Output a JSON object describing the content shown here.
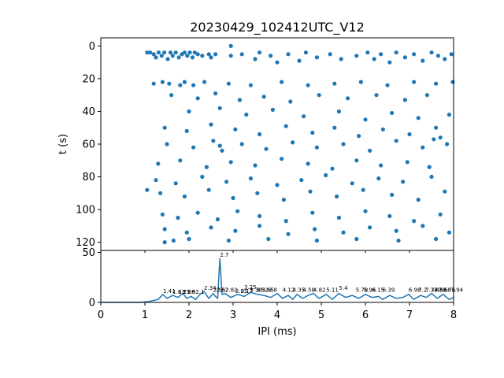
{
  "chart_data": [
    {
      "type": "scatter",
      "title": "20230429_102412UTC_V12",
      "xlabel": "",
      "ylabel": "t (s)",
      "xlim": [
        0,
        8
      ],
      "ylim": [
        125,
        -5
      ],
      "y_inverted": true,
      "x_shared_with_next": true,
      "yticks": [
        0,
        20,
        40,
        60,
        80,
        100,
        120
      ],
      "color": "#1f77b4",
      "marker": "dot",
      "grid": false,
      "points": [
        {
          "x": 1.05,
          "y": 4
        },
        {
          "x": 1.12,
          "y": 4
        },
        {
          "x": 1.2,
          "y": 5
        },
        {
          "x": 1.25,
          "y": 7
        },
        {
          "x": 1.31,
          "y": 4
        },
        {
          "x": 1.38,
          "y": 6
        },
        {
          "x": 1.44,
          "y": 4
        },
        {
          "x": 1.52,
          "y": 8
        },
        {
          "x": 1.58,
          "y": 4
        },
        {
          "x": 1.63,
          "y": 6
        },
        {
          "x": 1.7,
          "y": 4
        },
        {
          "x": 1.77,
          "y": 7
        },
        {
          "x": 1.84,
          "y": 5
        },
        {
          "x": 1.9,
          "y": 4
        },
        {
          "x": 1.96,
          "y": 6
        },
        {
          "x": 2.02,
          "y": 4
        },
        {
          "x": 2.08,
          "y": 7
        },
        {
          "x": 2.13,
          "y": 4
        },
        {
          "x": 2.2,
          "y": 5
        },
        {
          "x": 2.3,
          "y": 6
        },
        {
          "x": 2.45,
          "y": 5
        },
        {
          "x": 2.5,
          "y": 7
        },
        {
          "x": 2.6,
          "y": 5
        },
        {
          "x": 2.95,
          "y": 6
        },
        {
          "x": 3.2,
          "y": 5
        },
        {
          "x": 3.5,
          "y": 8
        },
        {
          "x": 3.6,
          "y": 4
        },
        {
          "x": 3.85,
          "y": 6
        },
        {
          "x": 4.0,
          "y": 10
        },
        {
          "x": 4.25,
          "y": 5
        },
        {
          "x": 4.5,
          "y": 9
        },
        {
          "x": 4.65,
          "y": 4
        },
        {
          "x": 4.9,
          "y": 7
        },
        {
          "x": 5.2,
          "y": 5
        },
        {
          "x": 5.45,
          "y": 8
        },
        {
          "x": 5.8,
          "y": 6
        },
        {
          "x": 6.05,
          "y": 4
        },
        {
          "x": 6.2,
          "y": 8
        },
        {
          "x": 6.35,
          "y": 5
        },
        {
          "x": 6.55,
          "y": 10
        },
        {
          "x": 6.7,
          "y": 4
        },
        {
          "x": 6.9,
          "y": 7
        },
        {
          "x": 7.1,
          "y": 5
        },
        {
          "x": 7.3,
          "y": 9
        },
        {
          "x": 7.5,
          "y": 4
        },
        {
          "x": 7.65,
          "y": 6
        },
        {
          "x": 7.8,
          "y": 8
        },
        {
          "x": 7.95,
          "y": 5
        },
        {
          "x": 2.95,
          "y": 0
        },
        {
          "x": 1.2,
          "y": 23
        },
        {
          "x": 1.4,
          "y": 22
        },
        {
          "x": 1.55,
          "y": 23
        },
        {
          "x": 1.8,
          "y": 24
        },
        {
          "x": 1.9,
          "y": 22
        },
        {
          "x": 2.1,
          "y": 24
        },
        {
          "x": 2.35,
          "y": 22
        },
        {
          "x": 2.9,
          "y": 23
        },
        {
          "x": 3.4,
          "y": 24
        },
        {
          "x": 4.1,
          "y": 22
        },
        {
          "x": 4.7,
          "y": 24
        },
        {
          "x": 5.3,
          "y": 23
        },
        {
          "x": 5.9,
          "y": 22
        },
        {
          "x": 6.5,
          "y": 24
        },
        {
          "x": 7.1,
          "y": 22
        },
        {
          "x": 7.6,
          "y": 23
        },
        {
          "x": 7.98,
          "y": 22
        },
        {
          "x": 1.6,
          "y": 30
        },
        {
          "x": 2.2,
          "y": 32
        },
        {
          "x": 2.6,
          "y": 29
        },
        {
          "x": 3.15,
          "y": 33
        },
        {
          "x": 3.7,
          "y": 31
        },
        {
          "x": 4.3,
          "y": 34
        },
        {
          "x": 4.95,
          "y": 30
        },
        {
          "x": 5.6,
          "y": 32
        },
        {
          "x": 6.25,
          "y": 30
        },
        {
          "x": 6.9,
          "y": 33
        },
        {
          "x": 7.4,
          "y": 30
        },
        {
          "x": 2.0,
          "y": 40
        },
        {
          "x": 2.7,
          "y": 38
        },
        {
          "x": 3.3,
          "y": 42
        },
        {
          "x": 3.9,
          "y": 39
        },
        {
          "x": 4.6,
          "y": 43
        },
        {
          "x": 5.4,
          "y": 40
        },
        {
          "x": 6.0,
          "y": 45
        },
        {
          "x": 6.6,
          "y": 41
        },
        {
          "x": 7.2,
          "y": 44
        },
        {
          "x": 7.9,
          "y": 42
        },
        {
          "x": 1.45,
          "y": 50
        },
        {
          "x": 1.95,
          "y": 52
        },
        {
          "x": 2.5,
          "y": 48
        },
        {
          "x": 3.05,
          "y": 51
        },
        {
          "x": 3.6,
          "y": 54
        },
        {
          "x": 4.2,
          "y": 49
        },
        {
          "x": 4.8,
          "y": 53
        },
        {
          "x": 5.3,
          "y": 50
        },
        {
          "x": 5.85,
          "y": 55
        },
        {
          "x": 6.4,
          "y": 51
        },
        {
          "x": 7.0,
          "y": 54
        },
        {
          "x": 7.6,
          "y": 50
        },
        {
          "x": 1.5,
          "y": 60
        },
        {
          "x": 2.1,
          "y": 62
        },
        {
          "x": 2.55,
          "y": 58
        },
        {
          "x": 2.7,
          "y": 61
        },
        {
          "x": 2.75,
          "y": 64
        },
        {
          "x": 3.2,
          "y": 60
        },
        {
          "x": 3.75,
          "y": 63
        },
        {
          "x": 4.35,
          "y": 59
        },
        {
          "x": 4.9,
          "y": 62
        },
        {
          "x": 5.5,
          "y": 60
        },
        {
          "x": 6.1,
          "y": 64
        },
        {
          "x": 6.7,
          "y": 58
        },
        {
          "x": 7.3,
          "y": 62
        },
        {
          "x": 7.55,
          "y": 57
        },
        {
          "x": 7.7,
          "y": 56
        },
        {
          "x": 7.85,
          "y": 60
        },
        {
          "x": 1.3,
          "y": 72
        },
        {
          "x": 1.8,
          "y": 70
        },
        {
          "x": 2.4,
          "y": 74
        },
        {
          "x": 2.95,
          "y": 71
        },
        {
          "x": 3.5,
          "y": 73
        },
        {
          "x": 4.1,
          "y": 69
        },
        {
          "x": 4.7,
          "y": 72
        },
        {
          "x": 5.25,
          "y": 75
        },
        {
          "x": 5.8,
          "y": 70
        },
        {
          "x": 6.35,
          "y": 73
        },
        {
          "x": 6.95,
          "y": 71
        },
        {
          "x": 7.45,
          "y": 74
        },
        {
          "x": 1.25,
          "y": 82
        },
        {
          "x": 1.7,
          "y": 84
        },
        {
          "x": 2.3,
          "y": 80
        },
        {
          "x": 2.85,
          "y": 83
        },
        {
          "x": 3.4,
          "y": 81
        },
        {
          "x": 4.0,
          "y": 85
        },
        {
          "x": 4.55,
          "y": 82
        },
        {
          "x": 5.1,
          "y": 79
        },
        {
          "x": 5.7,
          "y": 84
        },
        {
          "x": 6.3,
          "y": 81
        },
        {
          "x": 6.85,
          "y": 83
        },
        {
          "x": 7.5,
          "y": 80
        },
        {
          "x": 1.05,
          "y": 88
        },
        {
          "x": 1.35,
          "y": 90
        },
        {
          "x": 1.9,
          "y": 92
        },
        {
          "x": 2.45,
          "y": 88
        },
        {
          "x": 3.0,
          "y": 93
        },
        {
          "x": 3.55,
          "y": 90
        },
        {
          "x": 4.15,
          "y": 94
        },
        {
          "x": 4.75,
          "y": 89
        },
        {
          "x": 5.35,
          "y": 92
        },
        {
          "x": 5.95,
          "y": 88
        },
        {
          "x": 6.6,
          "y": 91
        },
        {
          "x": 7.2,
          "y": 94
        },
        {
          "x": 7.8,
          "y": 89
        },
        {
          "x": 1.4,
          "y": 103
        },
        {
          "x": 1.75,
          "y": 105
        },
        {
          "x": 2.2,
          "y": 102
        },
        {
          "x": 2.65,
          "y": 106
        },
        {
          "x": 3.1,
          "y": 101
        },
        {
          "x": 3.6,
          "y": 104
        },
        {
          "x": 4.2,
          "y": 107
        },
        {
          "x": 4.8,
          "y": 102
        },
        {
          "x": 5.4,
          "y": 105
        },
        {
          "x": 6.0,
          "y": 101
        },
        {
          "x": 6.55,
          "y": 104
        },
        {
          "x": 7.1,
          "y": 107
        },
        {
          "x": 7.7,
          "y": 103
        },
        {
          "x": 1.45,
          "y": 112
        },
        {
          "x": 1.95,
          "y": 114
        },
        {
          "x": 2.5,
          "y": 111
        },
        {
          "x": 3.05,
          "y": 113
        },
        {
          "x": 3.6,
          "y": 110
        },
        {
          "x": 4.25,
          "y": 115
        },
        {
          "x": 4.85,
          "y": 112
        },
        {
          "x": 5.5,
          "y": 114
        },
        {
          "x": 6.1,
          "y": 111
        },
        {
          "x": 6.7,
          "y": 113
        },
        {
          "x": 7.3,
          "y": 110
        },
        {
          "x": 7.9,
          "y": 114
        },
        {
          "x": 1.45,
          "y": 120
        },
        {
          "x": 1.65,
          "y": 119
        },
        {
          "x": 2.0,
          "y": 118
        },
        {
          "x": 2.9,
          "y": 119
        },
        {
          "x": 3.8,
          "y": 118
        },
        {
          "x": 4.9,
          "y": 119
        },
        {
          "x": 5.8,
          "y": 118
        },
        {
          "x": 6.75,
          "y": 119
        },
        {
          "x": 7.6,
          "y": 118
        }
      ]
    },
    {
      "type": "line",
      "xlabel": "IPI (ms)",
      "ylabel": "",
      "xlim": [
        0,
        8
      ],
      "ylim": [
        0,
        52
      ],
      "xticks": [
        0,
        1,
        2,
        3,
        4,
        5,
        6,
        7,
        8
      ],
      "yticks": [
        0,
        50
      ],
      "color": "#1f77b4",
      "grid": false,
      "x": [
        0,
        0.5,
        0.9,
        1.0,
        1.1,
        1.2,
        1.3,
        1.41,
        1.5,
        1.63,
        1.75,
        1.86,
        1.95,
        2.05,
        2.15,
        2.25,
        2.34,
        2.45,
        2.55,
        2.6,
        2.65,
        2.7,
        2.75,
        2.82,
        2.95,
        3.1,
        3.25,
        3.4,
        3.55,
        3.7,
        3.85,
        4.0,
        4.12,
        4.25,
        4.35,
        4.45,
        4.58,
        4.7,
        4.82,
        4.95,
        5.11,
        5.25,
        5.4,
        5.55,
        5.7,
        5.85,
        6.0,
        6.15,
        6.3,
        6.39,
        6.55,
        6.7,
        6.85,
        6.98,
        7.1,
        7.25,
        7.38,
        7.5,
        7.63,
        7.76,
        7.9,
        8.0
      ],
      "values": [
        0,
        0,
        0,
        0.5,
        1,
        2,
        3,
        8,
        4,
        7,
        5,
        9,
        4,
        6,
        3,
        8,
        11,
        4,
        9,
        6,
        4,
        44,
        8,
        9,
        5,
        8,
        6,
        10,
        8,
        7,
        5,
        9,
        4,
        7,
        3,
        8,
        4,
        7,
        9,
        4,
        8,
        3,
        9,
        5,
        7,
        4,
        8,
        5,
        6,
        3,
        7,
        4,
        5,
        8,
        3,
        7,
        5,
        9,
        4,
        8,
        3,
        5
      ],
      "annotations": [
        {
          "x": 1.41,
          "y": 8,
          "text": "1.41"
        },
        {
          "x": 1.63,
          "y": 7,
          "text": "1.63"
        },
        {
          "x": 1.75,
          "y": 7,
          "text": "1.75"
        },
        {
          "x": 1.86,
          "y": 7,
          "text": "1.86"
        },
        {
          "x": 1.95,
          "y": 7,
          "text": "1.9"
        },
        {
          "x": 2.15,
          "y": 7,
          "text": "2.1"
        },
        {
          "x": 2.34,
          "y": 11,
          "text": "2.34"
        },
        {
          "x": 2.55,
          "y": 9,
          "text": "2.55"
        },
        {
          "x": 2.62,
          "y": 9,
          "text": "2.62"
        },
        {
          "x": 2.7,
          "y": 44,
          "text": "2.7"
        },
        {
          "x": 2.82,
          "y": 9,
          "text": "2.82"
        },
        {
          "x": 3.05,
          "y": 8,
          "text": "3.05"
        },
        {
          "x": 3.17,
          "y": 8,
          "text": "3.17"
        },
        {
          "x": 3.25,
          "y": 12,
          "text": "3.25"
        },
        {
          "x": 3.38,
          "y": 9,
          "text": "3.38"
        },
        {
          "x": 3.52,
          "y": 9,
          "text": "3.52"
        },
        {
          "x": 3.65,
          "y": 9,
          "text": "3.65"
        },
        {
          "x": 3.8,
          "y": 9,
          "text": "3.8"
        },
        {
          "x": 4.12,
          "y": 9,
          "text": "4.12"
        },
        {
          "x": 4.35,
          "y": 9,
          "text": "4.35"
        },
        {
          "x": 4.58,
          "y": 9,
          "text": "4.58"
        },
        {
          "x": 4.82,
          "y": 9,
          "text": "4.82"
        },
        {
          "x": 5.11,
          "y": 9,
          "text": "5.11"
        },
        {
          "x": 5.4,
          "y": 11,
          "text": "5.4"
        },
        {
          "x": 5.78,
          "y": 9,
          "text": "5.78"
        },
        {
          "x": 5.96,
          "y": 9,
          "text": "5.96"
        },
        {
          "x": 6.15,
          "y": 9,
          "text": "6.15"
        },
        {
          "x": 6.39,
          "y": 9,
          "text": "6.39"
        },
        {
          "x": 6.98,
          "y": 9,
          "text": "6.98"
        },
        {
          "x": 7.2,
          "y": 9,
          "text": "7.2"
        },
        {
          "x": 7.36,
          "y": 9,
          "text": "7.36"
        },
        {
          "x": 7.48,
          "y": 9,
          "text": "7.48"
        },
        {
          "x": 7.56,
          "y": 9,
          "text": "7.56"
        },
        {
          "x": 7.66,
          "y": 9,
          "text": "7.66"
        },
        {
          "x": 7.76,
          "y": 9,
          "text": "7.76"
        },
        {
          "x": 7.94,
          "y": 9,
          "text": "7.94"
        }
      ]
    }
  ]
}
